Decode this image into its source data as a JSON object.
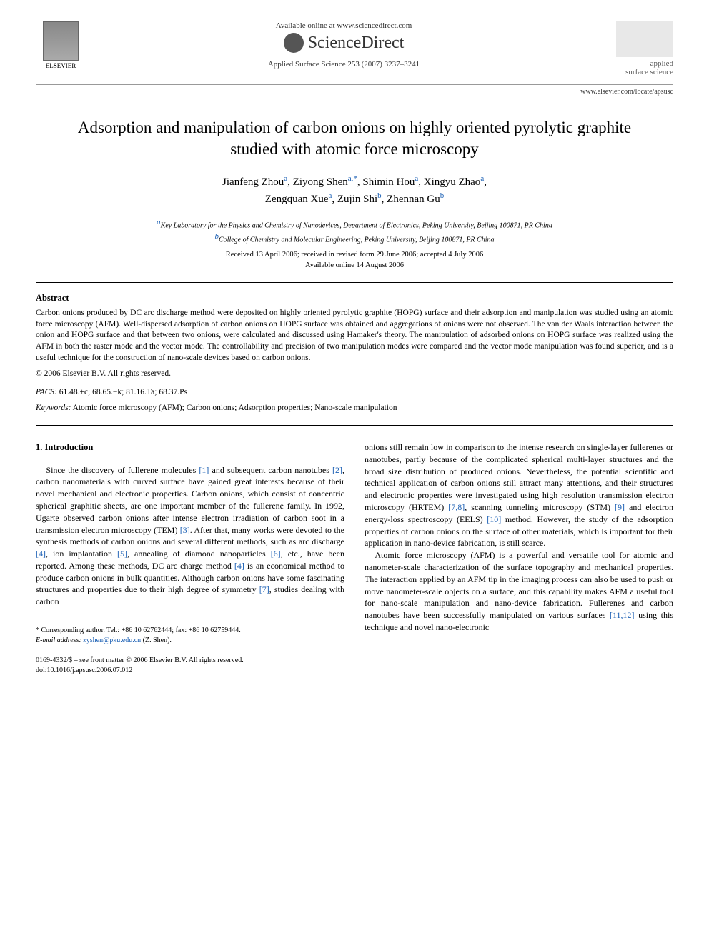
{
  "header": {
    "available_text": "Available online at www.sciencedirect.com",
    "sciencedirect": "ScienceDirect",
    "journal_ref": "Applied Surface Science 253 (2007) 3237–3241",
    "elsevier": "ELSEVIER",
    "journal_name_1": "applied",
    "journal_name_2": "surface science",
    "journal_url": "www.elsevier.com/locate/apsusc"
  },
  "title": "Adsorption and manipulation of carbon onions on highly oriented pyrolytic graphite studied with atomic force microscopy",
  "authors": {
    "line1_names": "Jianfeng Zhou",
    "a1_sup": "a",
    "line1_n2": ", Ziyong Shen",
    "a2_sup": "a,*",
    "line1_n3": ", Shimin Hou",
    "a3_sup": "a",
    "line1_n4": ", Xingyu Zhao",
    "a4_sup": "a",
    "line2_n5": "Zengquan Xue",
    "a5_sup": "a",
    "line2_n6": ", Zujin Shi",
    "a6_sup": "b",
    "line2_n7": ", Zhennan Gu",
    "a7_sup": "b"
  },
  "affiliations": {
    "a": "Key Laboratory for the Physics and Chemistry of Nanodevices, Department of Electronics, Peking University, Beijing 100871, PR China",
    "b": "College of Chemistry and Molecular Engineering, Peking University, Beijing 100871, PR China"
  },
  "dates": {
    "received": "Received 13 April 2006; received in revised form 29 June 2006; accepted 4 July 2006",
    "online": "Available online 14 August 2006"
  },
  "abstract": {
    "heading": "Abstract",
    "text": "Carbon onions produced by DC arc discharge method were deposited on highly oriented pyrolytic graphite (HOPG) surface and their adsorption and manipulation was studied using an atomic force microscopy (AFM). Well-dispersed adsorption of carbon onions on HOPG surface was obtained and aggregations of onions were not observed. The van der Waals interaction between the onion and HOPG surface and that between two onions, were calculated and discussed using Hamaker's theory. The manipulation of adsorbed onions on HOPG surface was realized using the AFM in both the raster mode and the vector mode. The controllability and precision of two manipulation modes were compared and the vector mode manipulation was found superior, and is a useful technique for the construction of nano-scale devices based on carbon onions.",
    "copyright": "© 2006 Elsevier B.V. All rights reserved."
  },
  "pacs": {
    "label": "PACS:",
    "codes": " 61.48.+c; 68.65.−k; 81.16.Ta; 68.37.Ps"
  },
  "keywords": {
    "label": "Keywords:",
    "text": " Atomic force microscopy (AFM); Carbon onions; Adsorption properties; Nano-scale manipulation"
  },
  "intro": {
    "heading": "1. Introduction",
    "col1_p1a": "Since the discovery of fullerene molecules ",
    "ref1": "[1]",
    "col1_p1b": " and subsequent carbon nanotubes ",
    "ref2": "[2]",
    "col1_p1c": ", carbon nanomaterials with curved surface have gained great interests because of their novel mechanical and electronic properties. Carbon onions, which consist of concentric spherical graphitic sheets, are one important member of the fullerene family. In 1992, Ugarte observed carbon onions after intense electron irradiation of carbon soot in a transmission electron microscopy (TEM) ",
    "ref3": "[3]",
    "col1_p1d": ". After that, many works were devoted to the synthesis methods of carbon onions and several different methods, such as arc discharge ",
    "ref4": "[4]",
    "col1_p1e": ", ion implantation ",
    "ref5": "[5]",
    "col1_p1f": ", annealing of diamond nanoparticles ",
    "ref6": "[6]",
    "col1_p1g": ", etc., have been reported. Among these methods, DC arc charge method ",
    "ref4b": "[4]",
    "col1_p1h": " is an economical method to produce carbon onions in bulk quantities. Although carbon onions have some fascinating structures and properties due to their high degree of symmetry ",
    "ref7": "[7]",
    "col1_p1i": ", studies dealing with carbon",
    "col2_p1a": "onions still remain low in comparison to the intense research on single-layer fullerenes or nanotubes, partly because of the complicated spherical multi-layer structures and the broad size distribution of produced onions. Nevertheless, the potential scientific and technical application of carbon onions still attract many attentions, and their structures and electronic properties were investigated using high resolution transmission electron microscopy (HRTEM) ",
    "ref78": "[7,8]",
    "col2_p1b": ", scanning tunneling microscopy (STM) ",
    "ref9": "[9]",
    "col2_p1c": " and electron energy-loss spectroscopy (EELS) ",
    "ref10": "[10]",
    "col2_p1d": " method. However, the study of the adsorption properties of carbon onions on the surface of other materials, which is important for their application in nano-device fabrication, is still scarce.",
    "col2_p2a": "Atomic force microscopy (AFM) is a powerful and versatile tool for atomic and nanometer-scale characterization of the surface topography and mechanical properties. The interaction applied by an AFM tip in the imaging process can also be used to push or move nanometer-scale objects on a surface, and this capability makes AFM a useful tool for nano-scale manipulation and nano-device fabrication. Fullerenes and carbon nanotubes have been successfully manipulated on various surfaces ",
    "ref1112": "[11,12]",
    "col2_p2b": " using this technique and novel nano-electronic"
  },
  "footer": {
    "corr_label": "* Corresponding author. Tel.: +86 10 62762444; fax: +86 10 62759444.",
    "email_label": "E-mail address:",
    "email": " zyshen@pku.edu.cn",
    "email_author": " (Z. Shen).",
    "issn": "0169-4332/$ – see front matter © 2006 Elsevier B.V. All rights reserved.",
    "doi": "doi:10.1016/j.apsusc.2006.07.012"
  },
  "colors": {
    "link": "#1a5fb4",
    "text": "#000000",
    "grey": "#555555"
  }
}
